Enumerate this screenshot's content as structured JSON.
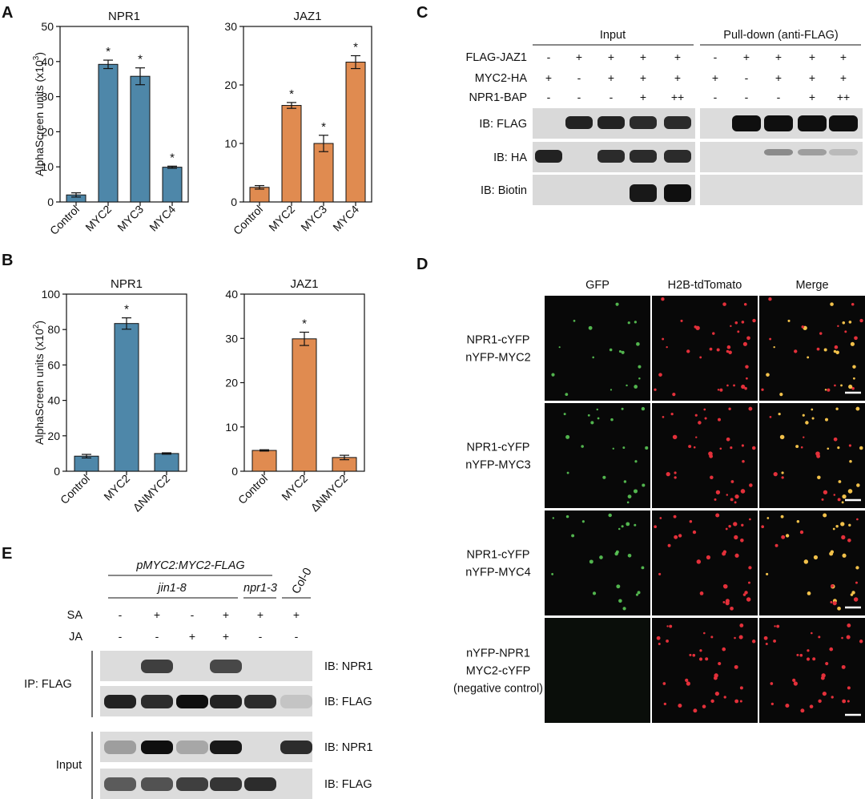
{
  "panels": {
    "A": "A",
    "B": "B",
    "C": "C",
    "D": "D",
    "E": "E"
  },
  "chart_data": [
    {
      "id": "A-NPR1",
      "type": "bar",
      "title": "NPR1",
      "ylabel": "AlphaScreen units (x10",
      "ylabel_sup": "3",
      "ylim": [
        0,
        50
      ],
      "yticks": [
        0,
        10,
        20,
        30,
        40,
        50
      ],
      "categories": [
        "Control",
        "MYC2",
        "MYC3",
        "MYC4"
      ],
      "values": [
        2,
        39.2,
        35.8,
        9.9
      ],
      "errors": [
        0.6,
        1.2,
        2.4,
        0.3
      ],
      "significant": [
        false,
        true,
        true,
        true
      ],
      "color": "#4e87a9"
    },
    {
      "id": "A-JAZ1",
      "type": "bar",
      "title": "JAZ1",
      "ylim": [
        0,
        30
      ],
      "yticks": [
        0,
        10,
        20,
        30
      ],
      "categories": [
        "Control",
        "MYC2",
        "MYC3",
        "MYC4"
      ],
      "values": [
        2.5,
        16.5,
        10,
        23.9
      ],
      "errors": [
        0.3,
        0.5,
        1.4,
        1.1
      ],
      "significant": [
        false,
        true,
        true,
        true
      ],
      "color": "#e08b50"
    },
    {
      "id": "B-NPR1",
      "type": "bar",
      "title": "NPR1",
      "ylabel": "AlphaScreen units (x10",
      "ylabel_sup": "2",
      "ylim": [
        0,
        100
      ],
      "yticks": [
        0,
        20,
        40,
        60,
        80,
        100
      ],
      "categories": [
        "Control",
        "MYC2",
        "ΔNMYC2"
      ],
      "values": [
        8.5,
        83.4,
        10
      ],
      "errors": [
        1,
        3.2,
        0.4
      ],
      "significant": [
        false,
        true,
        false
      ],
      "color": "#4e87a9"
    },
    {
      "id": "B-JAZ1",
      "type": "bar",
      "title": "JAZ1",
      "ylim": [
        0,
        40
      ],
      "yticks": [
        0,
        10,
        20,
        30,
        40
      ],
      "categories": [
        "Control",
        "MYC2",
        "ΔNMYC2"
      ],
      "values": [
        4.7,
        29.9,
        3.1
      ],
      "errors": [
        0.15,
        1.5,
        0.5
      ],
      "significant": [
        false,
        true,
        false
      ],
      "color": "#e08b50"
    }
  ],
  "star_symbol": "*",
  "panelC": {
    "group1": "Input",
    "group2": "Pull-down (anti-FLAG)",
    "rows": [
      {
        "label": "FLAG-JAZ1",
        "signs": [
          "-",
          "+",
          "+",
          "+",
          "+",
          "-",
          "+",
          "+",
          "+",
          "+"
        ]
      },
      {
        "label": "MYC2-HA",
        "signs": [
          "+",
          "-",
          "+",
          "+",
          "+",
          "+",
          "-",
          "+",
          "+",
          "+"
        ]
      },
      {
        "label": "NPR1-BAP",
        "signs": [
          "-",
          "-",
          "-",
          "+",
          "++",
          "-",
          "-",
          "-",
          "+",
          "++"
        ]
      }
    ],
    "blots": [
      {
        "label": "IB: FLAG",
        "left": [
          0,
          0.9,
          0.9,
          0.85,
          0.85
        ],
        "right": [
          0,
          1,
          1,
          1,
          1
        ]
      },
      {
        "label": "IB: HA",
        "left": [
          0.9,
          0,
          0.85,
          0.85,
          0.85
        ],
        "right": [
          0,
          0,
          0.35,
          0.25,
          0.1
        ]
      },
      {
        "label": "IB: Biotin",
        "left": [
          0,
          0,
          0,
          0.95,
          1
        ],
        "right": [
          0,
          0,
          0,
          0,
          0
        ]
      }
    ]
  },
  "panelD": {
    "columns": [
      "GFP",
      "H2B-tdTomato",
      "Merge"
    ],
    "rows": [
      {
        "lines": [
          "NPR1-cYFP",
          "nYFP-MYC2"
        ],
        "gfp": true
      },
      {
        "lines": [
          "NPR1-cYFP",
          "nYFP-MYC3"
        ],
        "gfp": true
      },
      {
        "lines": [
          "NPR1-cYFP",
          "nYFP-MYC4"
        ],
        "gfp": true
      },
      {
        "lines": [
          "nYFP-NPR1",
          "MYC2-cYFP",
          "(negative control)"
        ],
        "gfp": false
      }
    ]
  },
  "panelE": {
    "construct": "pMYC2:MYC2-FLAG",
    "genotypes": [
      "jin1-8",
      "npr1-3",
      "Col-0"
    ],
    "treatments": [
      {
        "label": "SA",
        "signs": [
          "-",
          "+",
          "-",
          "+",
          "+",
          "+"
        ]
      },
      {
        "label": "JA",
        "signs": [
          "-",
          "-",
          "+",
          "+",
          "-",
          "-"
        ]
      }
    ],
    "ip_label": "IP: FLAG",
    "input_label": "Input",
    "blots": [
      {
        "label": "IB: NPR1",
        "bands": [
          0,
          0.75,
          0,
          0.7,
          0,
          0
        ]
      },
      {
        "label": "IB: FLAG",
        "bands": [
          0.9,
          0.85,
          1,
          0.9,
          0.85,
          0.05
        ]
      },
      {
        "label": "IB: NPR1",
        "bands": [
          0.25,
          1,
          0.2,
          0.95,
          0,
          0.85
        ]
      },
      {
        "label": "IB: FLAG",
        "bands": [
          0.6,
          0.65,
          0.75,
          0.8,
          0.85,
          0
        ]
      }
    ]
  }
}
